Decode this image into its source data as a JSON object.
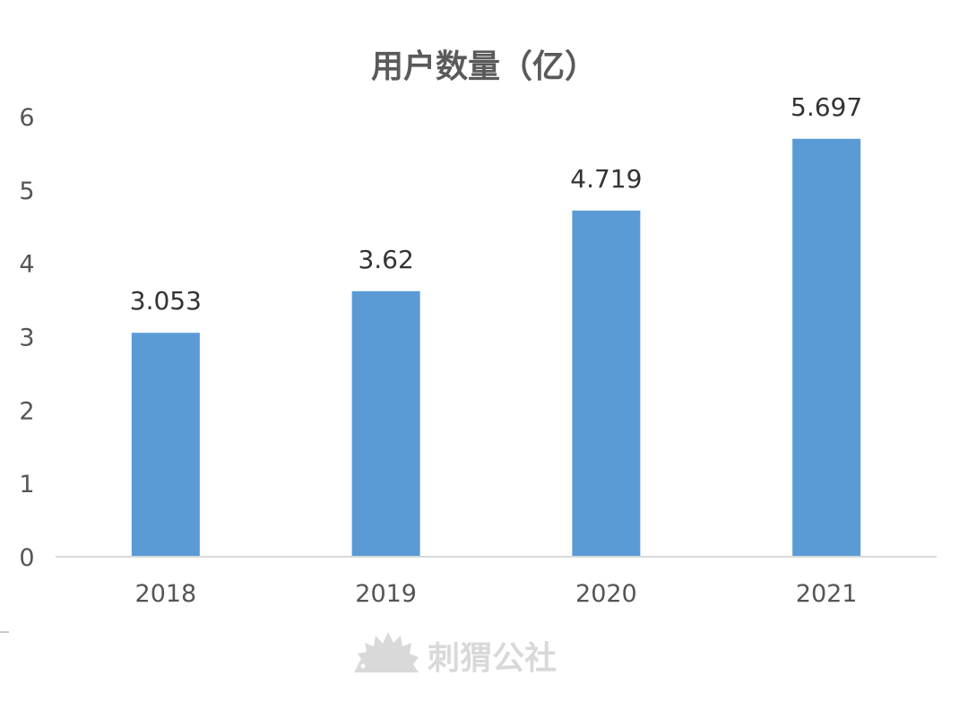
{
  "chart_data": {
    "type": "bar",
    "title": "用户数量（亿）",
    "xlabel": "",
    "ylabel": "",
    "categories": [
      "2018",
      "2019",
      "2020",
      "2021"
    ],
    "values": [
      3.053,
      3.62,
      4.719,
      5.697
    ],
    "data_labels": [
      "3.053",
      "3.62",
      "4.719",
      "5.697"
    ],
    "ylim": [
      0,
      6
    ],
    "yticks": [
      "0",
      "1",
      "2",
      "3",
      "4",
      "5",
      "6"
    ],
    "grid": false,
    "legend": "none",
    "bar_color": "#5b9bd5"
  },
  "watermark": {
    "text": "刺猬公社",
    "icon": "hedgehog-icon"
  },
  "colors": {
    "axis": "#d9d9d9",
    "title": "#5a5a5a",
    "tick": "#555555",
    "label": "#333333",
    "watermark": "#d9d9d9"
  }
}
